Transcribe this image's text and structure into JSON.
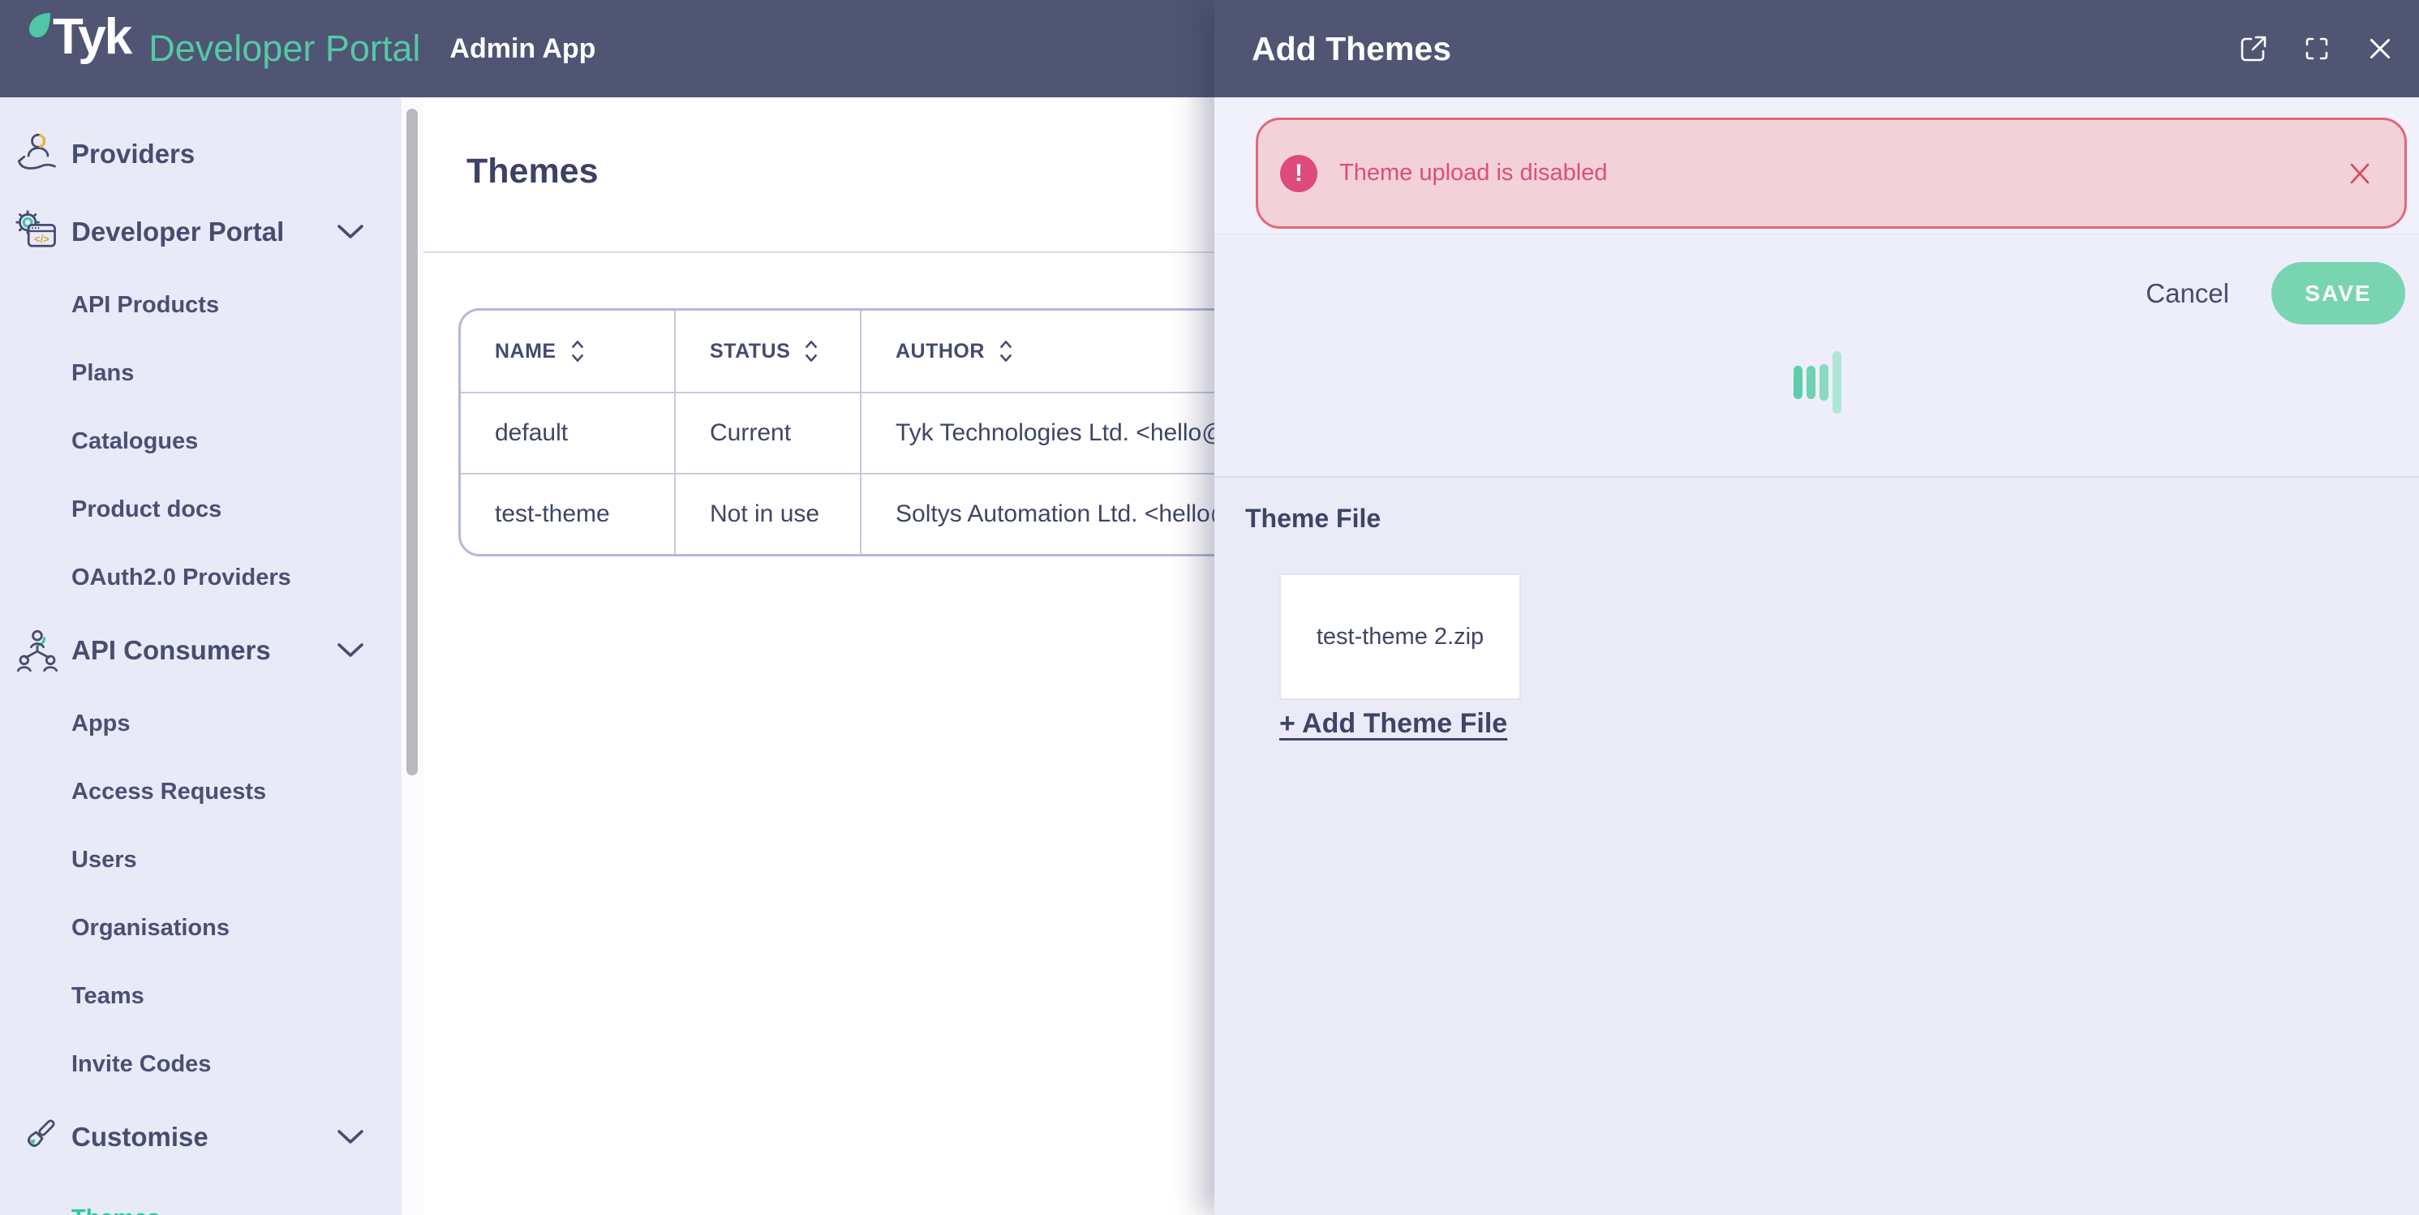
{
  "navbar": {
    "brand": "Tyk",
    "brand_icon": "tyk-leaf-icon",
    "product": "Developer Portal",
    "app_label": "Admin App"
  },
  "sidebar": {
    "items": [
      {
        "label": "Providers",
        "level": "top",
        "icon": "provider-icon"
      },
      {
        "label": "Developer Portal",
        "level": "top",
        "icon": "developer-portal-icon",
        "chevron": true
      },
      {
        "label": "API Products",
        "level": "sub"
      },
      {
        "label": "Plans",
        "level": "sub"
      },
      {
        "label": "Catalogues",
        "level": "sub"
      },
      {
        "label": "Product docs",
        "level": "sub"
      },
      {
        "label": "OAuth2.0 Providers",
        "level": "sub"
      },
      {
        "label": "API Consumers",
        "level": "top",
        "icon": "api-consumers-icon",
        "chevron": true
      },
      {
        "label": "Apps",
        "level": "sub"
      },
      {
        "label": "Access Requests",
        "level": "sub"
      },
      {
        "label": "Users",
        "level": "sub"
      },
      {
        "label": "Organisations",
        "level": "sub"
      },
      {
        "label": "Teams",
        "level": "sub"
      },
      {
        "label": "Invite Codes",
        "level": "sub"
      },
      {
        "label": "Customise",
        "level": "top",
        "icon": "customise-icon",
        "chevron": true
      },
      {
        "label": "Themes",
        "level": "sub",
        "active": true
      }
    ]
  },
  "main": {
    "title": "Themes"
  },
  "table": {
    "columns": [
      {
        "label": "NAME",
        "icon": "sort-icon"
      },
      {
        "label": "STATUS",
        "icon": "sort-icon"
      },
      {
        "label": "AUTHOR",
        "icon": "sort-icon"
      }
    ],
    "rows": [
      [
        "default",
        "Current",
        "Tyk Technologies Ltd. <hello@tyk"
      ],
      [
        "test-theme",
        "Not in use",
        "Soltys Automation Ltd. <hello@ty"
      ]
    ]
  },
  "drawer": {
    "title": "Add Themes",
    "header_icons": [
      "open-in-new-window-icon",
      "expand-icon",
      "close-icon"
    ],
    "alert": {
      "icon": "exclamation-icon",
      "icon_glyph": "!",
      "text": "Theme upload is disabled",
      "close_icon": "close-icon"
    },
    "cancel_label": "Cancel",
    "save_label": "SAVE",
    "loader_icon": "loading-bars-icon",
    "section": {
      "title": "Theme File",
      "file_name": "test-theme 2.zip",
      "add_link_label": "+ Add Theme File"
    }
  },
  "colors": {
    "navbar_bg": "#4F5573",
    "sidebar_bg": "#E9EAF8",
    "accent_teal": "#43C3A6",
    "active_item_teal": "#33C79E",
    "save_button": "#79D4B2",
    "loader_teal": "#5ECDAA",
    "alert_bg": "#F3D1D8",
    "alert_border": "#E0697A",
    "alert_accent": "#DC4E78",
    "text_dark": "#454B6E",
    "table_border": "#B5B8D9"
  }
}
